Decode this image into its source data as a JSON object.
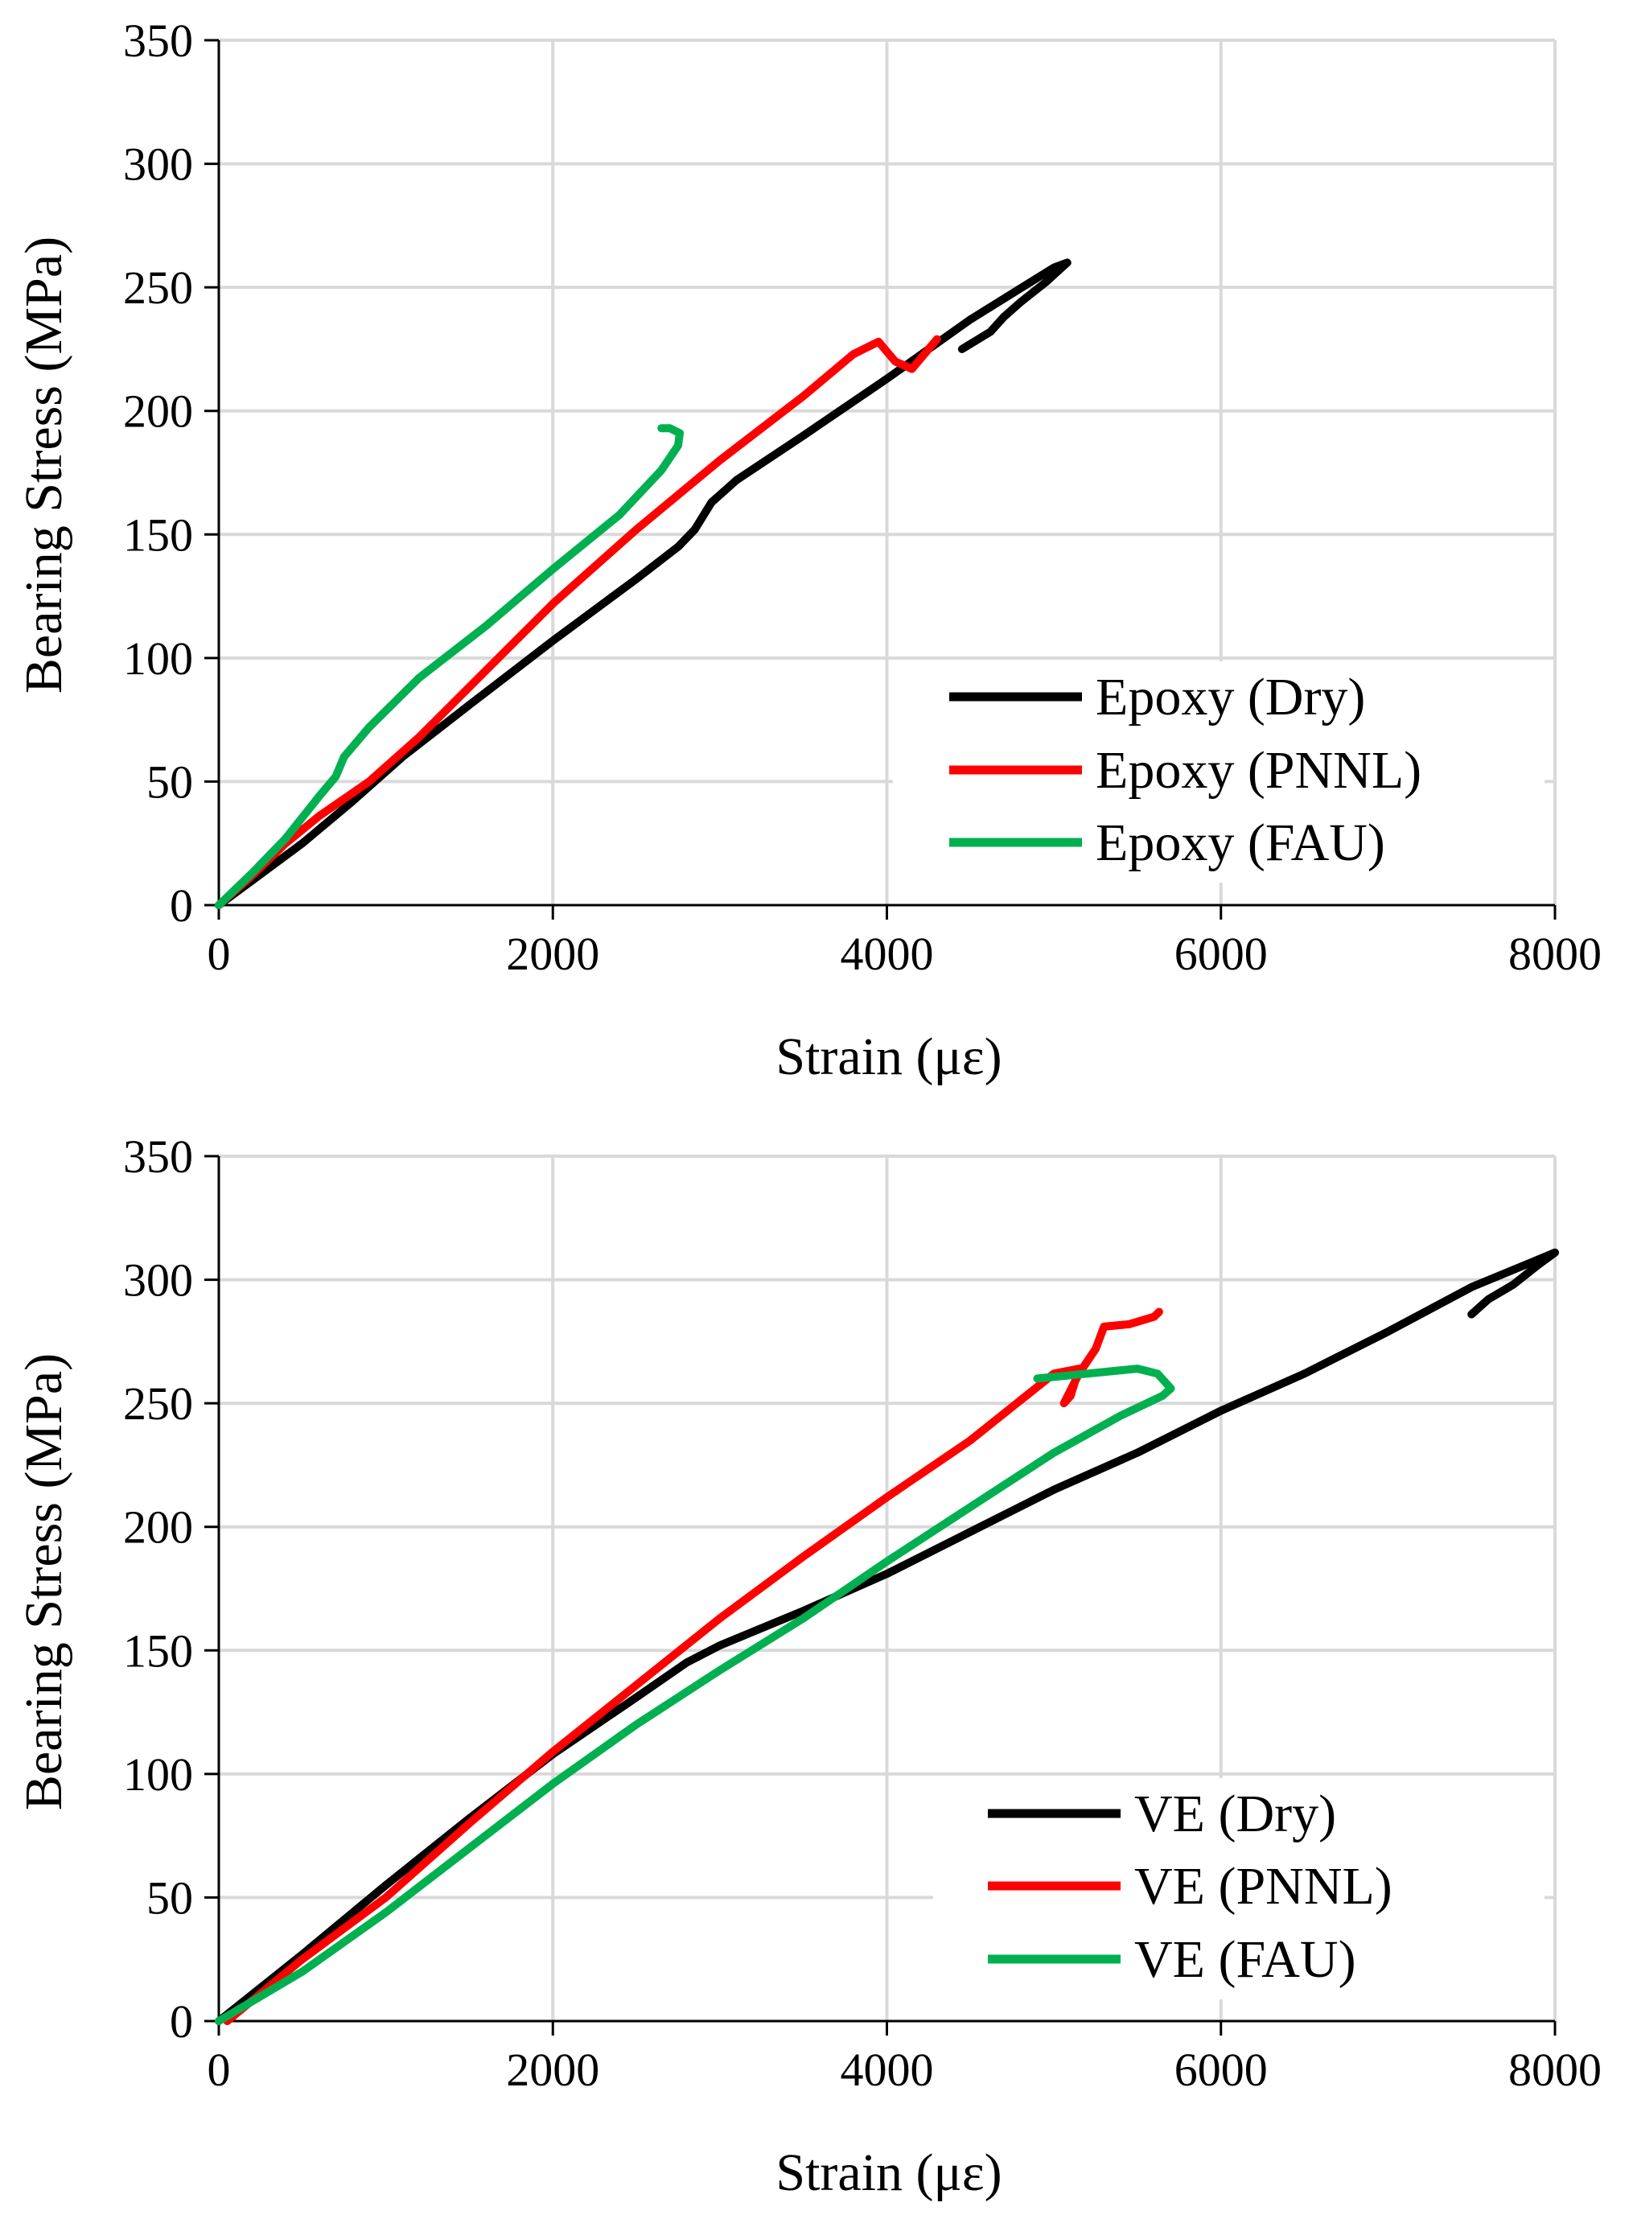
{
  "chart_data": [
    {
      "type": "line",
      "title": "",
      "xlabel": "Strain (με)",
      "ylabel": "Bearing Stress (MPa)",
      "xlim": [
        0,
        8000
      ],
      "ylim": [
        0,
        350
      ],
      "xticks": [
        "0",
        "2000",
        "4000",
        "6000",
        "8000"
      ],
      "yticks": [
        "0",
        "50",
        "100",
        "150",
        "200",
        "250",
        "300",
        "350"
      ],
      "grid": true,
      "legend_position": "bottom-right",
      "series": [
        {
          "name": "Epoxy (Dry)",
          "color": "#000000",
          "points": [
            [
              0,
              0
            ],
            [
              200,
              10
            ],
            [
              500,
              25
            ],
            [
              800,
              42
            ],
            [
              1100,
              60
            ],
            [
              1500,
              81
            ],
            [
              2000,
              107
            ],
            [
              2500,
              132
            ],
            [
              2750,
              145
            ],
            [
              2850,
              152
            ],
            [
              2950,
              163
            ],
            [
              3100,
              172
            ],
            [
              3500,
              190
            ],
            [
              4000,
              213
            ],
            [
              4500,
              237
            ],
            [
              5000,
              258
            ],
            [
              5080,
              260
            ],
            [
              4950,
              252
            ],
            [
              4800,
              244
            ],
            [
              4700,
              238
            ],
            [
              4620,
              232
            ],
            [
              4450,
              225
            ]
          ]
        },
        {
          "name": "Epoxy (PNNL)",
          "color": "#ff0000",
          "points": [
            [
              0,
              0
            ],
            [
              200,
              12
            ],
            [
              400,
              25
            ],
            [
              600,
              36
            ],
            [
              900,
              50
            ],
            [
              1200,
              68
            ],
            [
              1600,
              95
            ],
            [
              2000,
              122
            ],
            [
              2500,
              152
            ],
            [
              3000,
              180
            ],
            [
              3500,
              206
            ],
            [
              3800,
              223
            ],
            [
              3950,
              228
            ],
            [
              4050,
              220
            ],
            [
              4150,
              217
            ],
            [
              4250,
              225
            ],
            [
              4300,
              229
            ]
          ]
        },
        {
          "name": "Epoxy (FAU)",
          "color": "#00b050",
          "points": [
            [
              0,
              0
            ],
            [
              200,
              13
            ],
            [
              400,
              27
            ],
            [
              600,
              44
            ],
            [
              700,
              52
            ],
            [
              750,
              60
            ],
            [
              900,
              72
            ],
            [
              1200,
              92
            ],
            [
              1600,
              113
            ],
            [
              2000,
              136
            ],
            [
              2400,
              158
            ],
            [
              2650,
              176
            ],
            [
              2750,
              186
            ],
            [
              2760,
              191
            ],
            [
              2700,
              193
            ],
            [
              2650,
              193
            ]
          ]
        },
        {
          "name": "VE (Dry)",
          "color": "#000000",
          "points": [
            [
              0,
              0
            ],
            [
              500,
              27
            ],
            [
              1000,
              55
            ],
            [
              1500,
              82
            ],
            [
              2000,
              108
            ],
            [
              2500,
              131
            ],
            [
              2800,
              145
            ],
            [
              3000,
              152
            ],
            [
              3500,
              166
            ],
            [
              4000,
              181
            ],
            [
              4500,
              198
            ],
            [
              5000,
              215
            ],
            [
              5500,
              230
            ],
            [
              6000,
              247
            ],
            [
              6500,
              262
            ],
            [
              7000,
              279
            ],
            [
              7500,
              297
            ],
            [
              8000,
              311
            ],
            [
              7900,
              306
            ],
            [
              7750,
              298
            ],
            [
              7600,
              292
            ],
            [
              7500,
              286
            ]
          ]
        },
        {
          "name": "VE (PNNL)",
          "color": "#ff0000",
          "points": [
            [
              50,
              0
            ],
            [
              500,
              25
            ],
            [
              1000,
              50
            ],
            [
              1500,
              80
            ],
            [
              2000,
              109
            ],
            [
              2500,
              136
            ],
            [
              3000,
              163
            ],
            [
              3500,
              188
            ],
            [
              4000,
              212
            ],
            [
              4500,
              235
            ],
            [
              5000,
              262
            ],
            [
              5150,
              264
            ],
            [
              5100,
              253
            ],
            [
              5060,
              250
            ],
            [
              5150,
              262
            ],
            [
              5250,
              272
            ],
            [
              5300,
              281
            ],
            [
              5450,
              282
            ],
            [
              5600,
              285
            ],
            [
              5630,
              287
            ]
          ]
        },
        {
          "name": "VE (FAU)",
          "color": "#00b050",
          "points": [
            [
              0,
              0
            ],
            [
              500,
              20
            ],
            [
              1000,
              44
            ],
            [
              1500,
              70
            ],
            [
              2000,
              96
            ],
            [
              2500,
              120
            ],
            [
              3000,
              142
            ],
            [
              3500,
              163
            ],
            [
              4000,
              186
            ],
            [
              4500,
              208
            ],
            [
              5000,
              230
            ],
            [
              5400,
              245
            ],
            [
              5650,
              253
            ],
            [
              5700,
              256
            ],
            [
              5620,
              262
            ],
            [
              5500,
              264
            ],
            [
              5200,
              262
            ],
            [
              4900,
              260
            ]
          ]
        }
      ]
    }
  ],
  "panels": [
    {
      "legend": [
        "Epoxy (Dry)",
        "Epoxy (PNNL)",
        "Epoxy (FAU)"
      ]
    },
    {
      "legend": [
        "VE (Dry)",
        "VE (PNNL)",
        "VE (FAU)"
      ]
    }
  ]
}
